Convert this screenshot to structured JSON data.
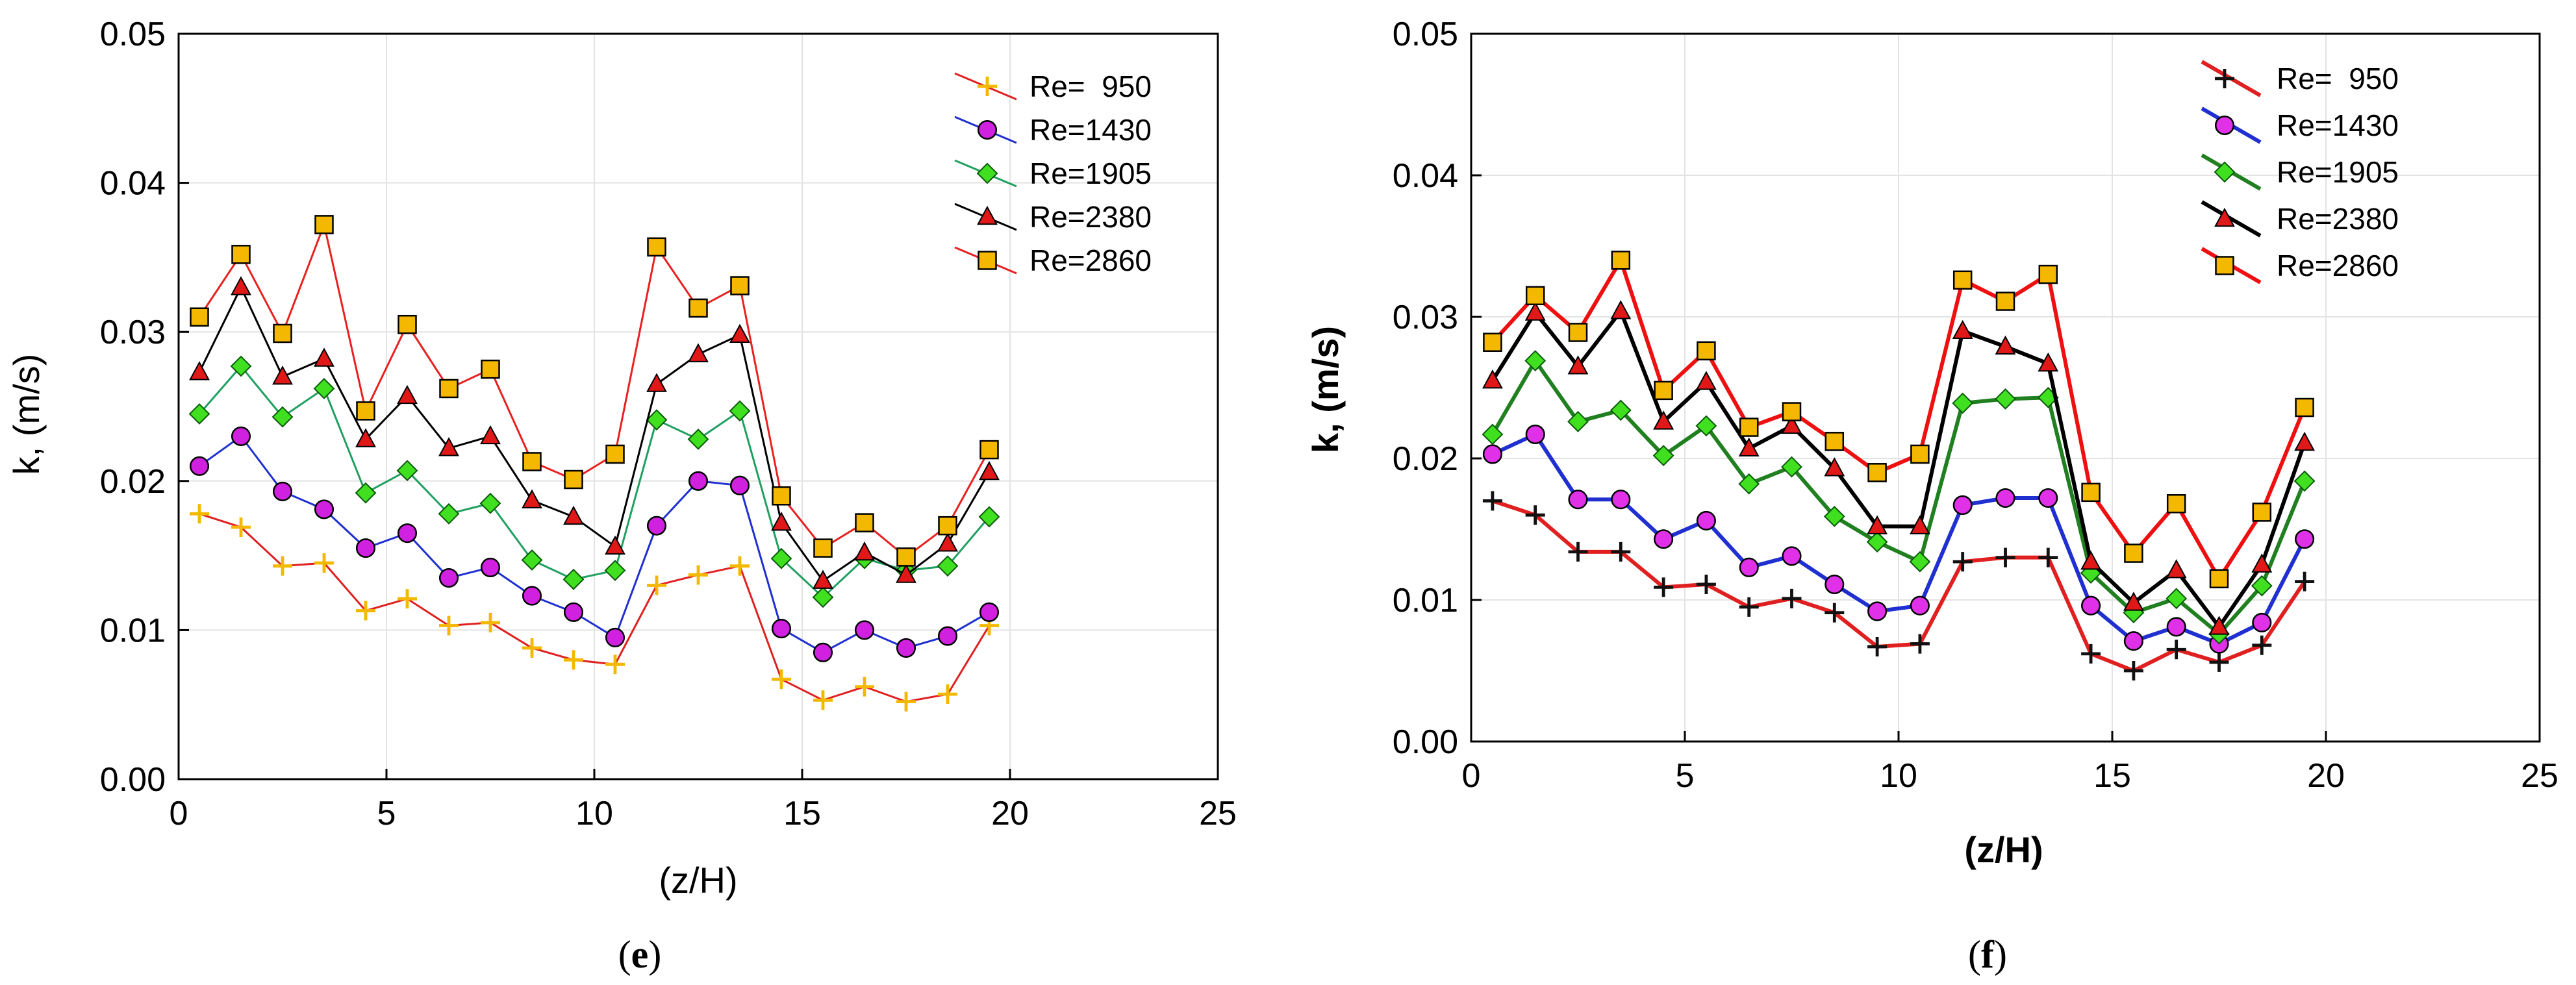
{
  "chart_data": [
    {
      "type": "line",
      "panel": "e",
      "caption_open": "(",
      "caption_letter": "e",
      "caption_close": ")",
      "xlabel": "(z/H)",
      "ylabel": "k, (m/s)",
      "xlim": [
        0,
        25
      ],
      "ylim": [
        0,
        0.05
      ],
      "xticks": [
        0,
        5,
        10,
        15,
        20,
        25
      ],
      "yticks": [
        0.0,
        0.01,
        0.02,
        0.03,
        0.04,
        0.05
      ],
      "ytick_labels": [
        "0.00",
        "0.01",
        "0.02",
        "0.03",
        "0.04",
        "0.05"
      ],
      "grid": true,
      "legend_position": "top-right",
      "x": [
        0.5,
        1.5,
        2.5,
        3.5,
        4.5,
        5.5,
        6.5,
        7.5,
        8.5,
        9.5,
        10.5,
        11.5,
        12.5,
        13.5,
        14.5,
        15.5,
        16.5,
        17.5,
        18.5,
        19.5
      ],
      "series": [
        {
          "name": "Re=  950",
          "line_color": "#e02020",
          "marker": "plus",
          "marker_color": "#f5b800",
          "values": [
            0.0178,
            0.0169,
            0.0143,
            0.0145,
            0.0113,
            0.0121,
            0.0103,
            0.0105,
            0.0088,
            0.008,
            0.0077,
            0.013,
            0.0137,
            0.0143,
            0.0067,
            0.0053,
            0.0062,
            0.0052,
            0.0057,
            0.0103
          ]
        },
        {
          "name": "Re=1430",
          "line_color": "#1f2fd0",
          "marker": "circle",
          "marker_color": "#d020e0",
          "values": [
            0.021,
            0.023,
            0.0193,
            0.0181,
            0.0155,
            0.0165,
            0.0135,
            0.0142,
            0.0123,
            0.0112,
            0.0095,
            0.017,
            0.02,
            0.0197,
            0.0101,
            0.0085,
            0.01,
            0.0088,
            0.0096,
            0.0112
          ]
        },
        {
          "name": "Re=1905",
          "line_color": "#20a060",
          "marker": "diamond",
          "marker_color": "#40e020",
          "values": [
            0.0245,
            0.0277,
            0.0243,
            0.0262,
            0.0192,
            0.0207,
            0.0178,
            0.0185,
            0.0147,
            0.0134,
            0.014,
            0.0241,
            0.0228,
            0.0247,
            0.0148,
            0.0122,
            0.0148,
            0.014,
            0.0143,
            0.0176
          ]
        },
        {
          "name": "Re=2380",
          "line_color": "#000000",
          "marker": "triangle",
          "marker_color": "#e01818",
          "values": [
            0.0273,
            0.033,
            0.027,
            0.0282,
            0.0228,
            0.0257,
            0.0222,
            0.023,
            0.0187,
            0.0176,
            0.0156,
            0.0265,
            0.0285,
            0.0298,
            0.0172,
            0.0133,
            0.0152,
            0.0137,
            0.0158,
            0.0206
          ]
        },
        {
          "name": "Re=2860",
          "line_color": "#e82020",
          "marker": "square",
          "marker_color": "#f5b800",
          "values": [
            0.031,
            0.0352,
            0.0299,
            0.0372,
            0.0247,
            0.0305,
            0.0262,
            0.0275,
            0.0213,
            0.0201,
            0.0218,
            0.0357,
            0.0316,
            0.0331,
            0.019,
            0.0155,
            0.0172,
            0.0149,
            0.017,
            0.0221
          ]
        }
      ]
    },
    {
      "type": "line",
      "panel": "f",
      "caption_open": "(",
      "caption_letter": "f",
      "caption_close": ")",
      "xlabel": "(z/H)",
      "ylabel": "k, (m/s)",
      "xlim": [
        0,
        25
      ],
      "ylim": [
        0,
        0.05
      ],
      "xticks": [
        0,
        5,
        10,
        15,
        20,
        25
      ],
      "yticks": [
        0.0,
        0.01,
        0.02,
        0.03,
        0.04,
        0.05
      ],
      "ytick_labels": [
        "0.00",
        "0.01",
        "0.02",
        "0.03",
        "0.04",
        "0.05"
      ],
      "grid": true,
      "legend_position": "top-right",
      "x": [
        0.5,
        1.5,
        2.5,
        3.5,
        4.5,
        5.5,
        6.5,
        7.5,
        8.5,
        9.5,
        10.5,
        11.5,
        12.5,
        13.5,
        14.5,
        15.5,
        16.5,
        17.5,
        18.5,
        19.5
      ],
      "series": [
        {
          "name": "Re=  950",
          "line_color": "#e02020",
          "marker": "plus",
          "marker_color": "#111111",
          "values": [
            0.017,
            0.016,
            0.0134,
            0.0134,
            0.0109,
            0.0111,
            0.0095,
            0.0101,
            0.0091,
            0.0067,
            0.0069,
            0.0127,
            0.013,
            0.013,
            0.0062,
            0.005,
            0.0065,
            0.0056,
            0.0068,
            0.0113
          ]
        },
        {
          "name": "Re=1430",
          "line_color": "#1f2fd0",
          "marker": "circle",
          "marker_color": "#e030e8",
          "values": [
            0.0203,
            0.0217,
            0.0171,
            0.0171,
            0.0143,
            0.0156,
            0.0123,
            0.0131,
            0.0111,
            0.0092,
            0.0096,
            0.0167,
            0.0172,
            0.0172,
            0.0096,
            0.0071,
            0.0081,
            0.0069,
            0.0084,
            0.0143
          ]
        },
        {
          "name": "Re=1905",
          "line_color": "#208020",
          "marker": "diamond",
          "marker_color": "#40e020",
          "values": [
            0.0217,
            0.0269,
            0.0226,
            0.0234,
            0.0202,
            0.0223,
            0.0182,
            0.0194,
            0.0159,
            0.0141,
            0.0127,
            0.0239,
            0.0242,
            0.0243,
            0.0119,
            0.0091,
            0.0101,
            0.0076,
            0.011,
            0.0184
          ]
        },
        {
          "name": "Re=2380",
          "line_color": "#000000",
          "marker": "triangle",
          "marker_color": "#e01818",
          "values": [
            0.0255,
            0.0303,
            0.0265,
            0.0304,
            0.0226,
            0.0254,
            0.0207,
            0.0223,
            0.0193,
            0.0152,
            0.0152,
            0.029,
            0.0279,
            0.0267,
            0.0127,
            0.0098,
            0.0121,
            0.0081,
            0.0125,
            0.0211
          ]
        },
        {
          "name": "Re=2860",
          "line_color": "#ee1010",
          "marker": "square",
          "marker_color": "#f5b800",
          "values": [
            0.0282,
            0.0315,
            0.0289,
            0.034,
            0.0248,
            0.0276,
            0.0222,
            0.0233,
            0.0212,
            0.019,
            0.0203,
            0.0326,
            0.0311,
            0.033,
            0.0176,
            0.0133,
            0.0168,
            0.0115,
            0.0162,
            0.0236
          ]
        }
      ]
    }
  ]
}
